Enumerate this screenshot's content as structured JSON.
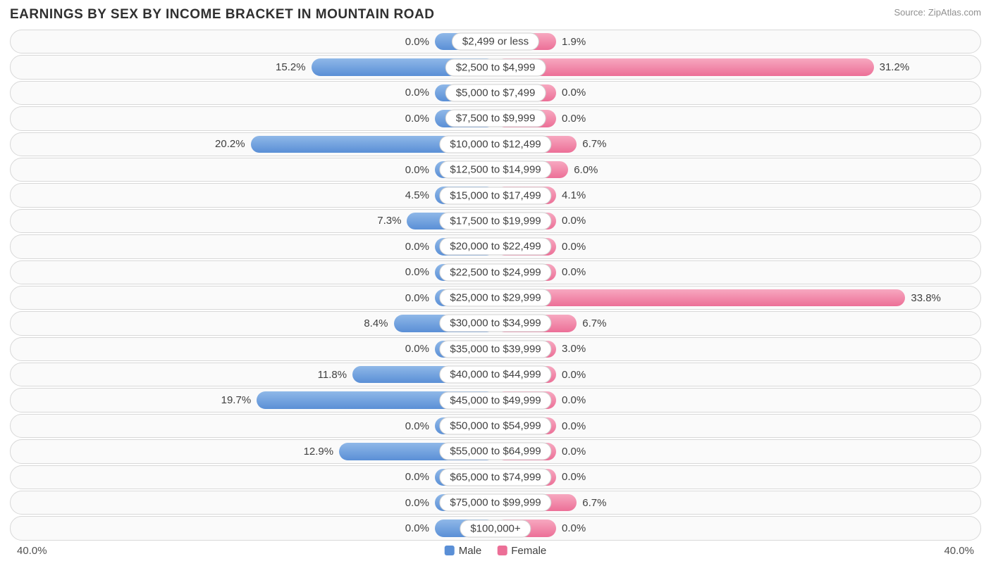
{
  "title": "EARNINGS BY SEX BY INCOME BRACKET IN MOUNTAIN ROAD",
  "source": "Source: ZipAtlas.com",
  "chart": {
    "type": "diverging-bar",
    "axis_max": 40.0,
    "axis_label_left": "40.0%",
    "axis_label_right": "40.0%",
    "min_bar_pct": 5.0,
    "male_gradient": [
      "#8fb8e8",
      "#5a8fd6"
    ],
    "female_gradient": [
      "#f7a8c0",
      "#ec6f97"
    ],
    "row_bg": "#fafafa",
    "row_border": "#d8d8d8",
    "label_bg": "#ffffff",
    "label_border": "#d0d0d0",
    "text_color": "#404040",
    "value_fontsize": 15,
    "label_fontsize": 15,
    "row_height": 34.4,
    "row_gap": 2,
    "border_radius": 17,
    "legend": {
      "male": {
        "label": "Male",
        "color": "#5a8fd6"
      },
      "female": {
        "label": "Female",
        "color": "#ec6f97"
      }
    },
    "rows": [
      {
        "category": "$2,499 or less",
        "male": 0.0,
        "female": 1.9
      },
      {
        "category": "$2,500 to $4,999",
        "male": 15.2,
        "female": 31.2
      },
      {
        "category": "$5,000 to $7,499",
        "male": 0.0,
        "female": 0.0
      },
      {
        "category": "$7,500 to $9,999",
        "male": 0.0,
        "female": 0.0
      },
      {
        "category": "$10,000 to $12,499",
        "male": 20.2,
        "female": 6.7
      },
      {
        "category": "$12,500 to $14,999",
        "male": 0.0,
        "female": 6.0
      },
      {
        "category": "$15,000 to $17,499",
        "male": 4.5,
        "female": 4.1
      },
      {
        "category": "$17,500 to $19,999",
        "male": 7.3,
        "female": 0.0
      },
      {
        "category": "$20,000 to $22,499",
        "male": 0.0,
        "female": 0.0
      },
      {
        "category": "$22,500 to $24,999",
        "male": 0.0,
        "female": 0.0
      },
      {
        "category": "$25,000 to $29,999",
        "male": 0.0,
        "female": 33.8
      },
      {
        "category": "$30,000 to $34,999",
        "male": 8.4,
        "female": 6.7
      },
      {
        "category": "$35,000 to $39,999",
        "male": 0.0,
        "female": 3.0
      },
      {
        "category": "$40,000 to $44,999",
        "male": 11.8,
        "female": 0.0
      },
      {
        "category": "$45,000 to $49,999",
        "male": 19.7,
        "female": 0.0
      },
      {
        "category": "$50,000 to $54,999",
        "male": 0.0,
        "female": 0.0
      },
      {
        "category": "$55,000 to $64,999",
        "male": 12.9,
        "female": 0.0
      },
      {
        "category": "$65,000 to $74,999",
        "male": 0.0,
        "female": 0.0
      },
      {
        "category": "$75,000 to $99,999",
        "male": 0.0,
        "female": 6.7
      },
      {
        "category": "$100,000+",
        "male": 0.0,
        "female": 0.0
      }
    ]
  }
}
